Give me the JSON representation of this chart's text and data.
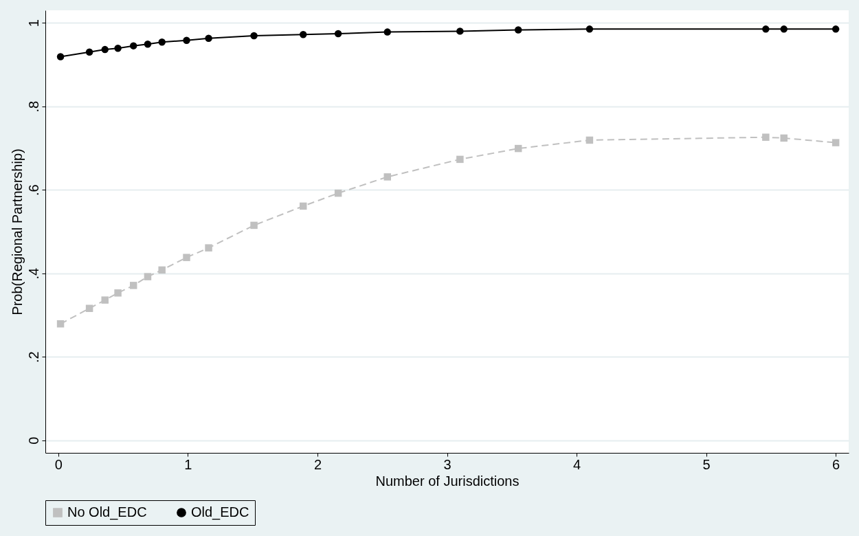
{
  "chart_data": {
    "type": "line",
    "xlabel": "Number of Jurisdictions",
    "ylabel": "Prob(Regional Partnership)",
    "x": [
      0.017,
      0.24,
      0.36,
      0.46,
      0.58,
      0.69,
      0.8,
      0.99,
      1.16,
      1.51,
      1.89,
      2.16,
      2.54,
      3.1,
      3.55,
      4.1,
      5.46,
      5.6,
      6.0
    ],
    "series": [
      {
        "name": "No Old_EDC",
        "color": "#c0c0c0",
        "marker": "square",
        "line_style": "dashed",
        "values": [
          0.279,
          0.316,
          0.336,
          0.353,
          0.371,
          0.392,
          0.408,
          0.438,
          0.461,
          0.515,
          0.561,
          0.592,
          0.631,
          0.673,
          0.699,
          0.719,
          0.726,
          0.724,
          0.713
        ]
      },
      {
        "name": "Old_EDC",
        "color": "#000000",
        "marker": "circle",
        "line_style": "solid",
        "values": [
          0.919,
          0.93,
          0.936,
          0.939,
          0.945,
          0.949,
          0.954,
          0.958,
          0.963,
          0.969,
          0.972,
          0.974,
          0.978,
          0.98,
          0.983,
          0.985,
          0.985,
          0.985,
          0.985
        ]
      }
    ],
    "xlim": [
      -0.1,
      6.1
    ],
    "xticks": [
      0,
      1,
      2,
      3,
      4,
      5,
      6
    ],
    "ylim": [
      -0.03,
      1.03
    ],
    "yticks": [
      {
        "value": 0,
        "label": "0"
      },
      {
        "value": 0.2,
        "label": ".2"
      },
      {
        "value": 0.4,
        "label": ".4"
      },
      {
        "value": 0.6,
        "label": ".6"
      },
      {
        "value": 0.8,
        "label": ".8"
      },
      {
        "value": 1,
        "label": "1"
      }
    ],
    "grid": "y",
    "legend": "bottom"
  }
}
